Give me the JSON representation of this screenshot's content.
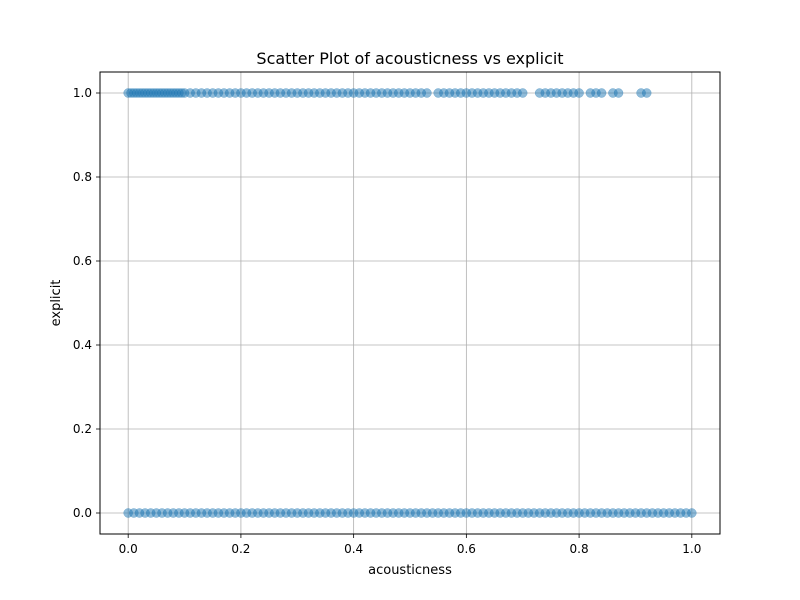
{
  "chart_data": {
    "type": "scatter",
    "title": "Scatter Plot of acousticness vs explicit",
    "xlabel": "acousticness",
    "ylabel": "explicit",
    "xlim": [
      -0.05,
      1.05
    ],
    "ylim": [
      -0.05,
      1.05
    ],
    "grid": true,
    "point_color": "#1f77b4",
    "point_alpha": 0.5,
    "x_ticks": [
      {
        "value": 0.0,
        "label": "0.0"
      },
      {
        "value": 0.2,
        "label": "0.2"
      },
      {
        "value": 0.4,
        "label": "0.4"
      },
      {
        "value": 0.6,
        "label": "0.6"
      },
      {
        "value": 0.8,
        "label": "0.8"
      },
      {
        "value": 1.0,
        "label": "1.0"
      }
    ],
    "y_ticks": [
      {
        "value": 0.0,
        "label": "0.0"
      },
      {
        "value": 0.2,
        "label": "0.2"
      },
      {
        "value": 0.4,
        "label": "0.4"
      },
      {
        "value": 0.6,
        "label": "0.6"
      },
      {
        "value": 0.8,
        "label": "0.8"
      },
      {
        "value": 1.0,
        "label": "1.0"
      }
    ],
    "series": [
      {
        "y": 0,
        "x": [
          0.0,
          0.01,
          0.02,
          0.03,
          0.04,
          0.05,
          0.06,
          0.07,
          0.08,
          0.09,
          0.1,
          0.11,
          0.12,
          0.13,
          0.14,
          0.15,
          0.16,
          0.17,
          0.18,
          0.19,
          0.2,
          0.21,
          0.22,
          0.23,
          0.24,
          0.25,
          0.26,
          0.27,
          0.28,
          0.29,
          0.3,
          0.31,
          0.32,
          0.33,
          0.34,
          0.35,
          0.36,
          0.37,
          0.38,
          0.39,
          0.4,
          0.41,
          0.42,
          0.43,
          0.44,
          0.45,
          0.46,
          0.47,
          0.48,
          0.49,
          0.5,
          0.51,
          0.52,
          0.53,
          0.54,
          0.55,
          0.56,
          0.57,
          0.58,
          0.59,
          0.6,
          0.61,
          0.62,
          0.63,
          0.64,
          0.65,
          0.66,
          0.67,
          0.68,
          0.69,
          0.7,
          0.71,
          0.72,
          0.73,
          0.74,
          0.75,
          0.76,
          0.77,
          0.78,
          0.79,
          0.8,
          0.81,
          0.82,
          0.83,
          0.84,
          0.85,
          0.86,
          0.87,
          0.88,
          0.89,
          0.9,
          0.91,
          0.92,
          0.93,
          0.94,
          0.95,
          0.96,
          0.97,
          0.98,
          0.99,
          1.0
        ]
      },
      {
        "y": 1,
        "x": [
          0.0,
          0.005,
          0.01,
          0.015,
          0.02,
          0.025,
          0.03,
          0.035,
          0.04,
          0.045,
          0.05,
          0.055,
          0.06,
          0.065,
          0.07,
          0.075,
          0.08,
          0.085,
          0.09,
          0.095,
          0.1,
          0.11,
          0.12,
          0.13,
          0.14,
          0.15,
          0.16,
          0.17,
          0.18,
          0.19,
          0.2,
          0.21,
          0.22,
          0.23,
          0.24,
          0.25,
          0.26,
          0.27,
          0.28,
          0.29,
          0.3,
          0.31,
          0.32,
          0.33,
          0.34,
          0.35,
          0.36,
          0.37,
          0.38,
          0.39,
          0.4,
          0.41,
          0.42,
          0.43,
          0.44,
          0.45,
          0.46,
          0.47,
          0.48,
          0.49,
          0.5,
          0.51,
          0.52,
          0.53,
          0.55,
          0.56,
          0.57,
          0.58,
          0.59,
          0.6,
          0.61,
          0.62,
          0.63,
          0.64,
          0.65,
          0.66,
          0.67,
          0.68,
          0.69,
          0.7,
          0.73,
          0.74,
          0.75,
          0.76,
          0.77,
          0.78,
          0.79,
          0.8,
          0.82,
          0.83,
          0.84,
          0.86,
          0.87,
          0.91,
          0.92
        ]
      }
    ]
  }
}
